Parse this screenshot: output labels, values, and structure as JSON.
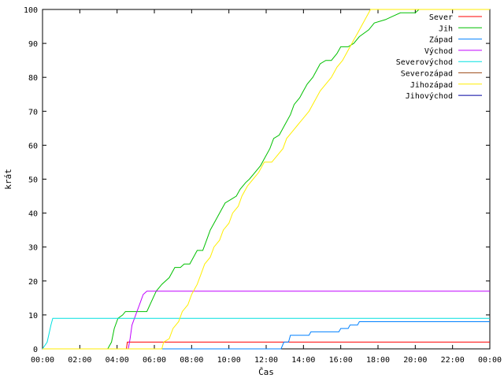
{
  "chart_data": {
    "type": "line",
    "xlabel": "Čas",
    "ylabel": "krát",
    "xlim": [
      0,
      24
    ],
    "ylim": [
      0,
      100
    ],
    "x_ticks": [
      "00:00",
      "02:00",
      "04:00",
      "06:00",
      "08:00",
      "10:00",
      "12:00",
      "14:00",
      "16:00",
      "18:00",
      "20:00",
      "22:00",
      "00:00"
    ],
    "y_ticks": [
      "0",
      "10",
      "20",
      "30",
      "40",
      "50",
      "60",
      "70",
      "80",
      "90",
      "100"
    ],
    "grid": false,
    "legend_position": "top-right",
    "series": [
      {
        "name": "Sever",
        "color": "#ff0000",
        "points": [
          [
            0,
            0
          ],
          [
            4.5,
            0
          ],
          [
            4.55,
            2
          ],
          [
            24,
            2
          ]
        ]
      },
      {
        "name": "Jih",
        "color": "#00c000",
        "points": [
          [
            0,
            0
          ],
          [
            3.5,
            0
          ],
          [
            3.7,
            2
          ],
          [
            3.85,
            6
          ],
          [
            4.05,
            9
          ],
          [
            4.3,
            10
          ],
          [
            4.45,
            11
          ],
          [
            5.6,
            11
          ],
          [
            5.85,
            14
          ],
          [
            6.1,
            17
          ],
          [
            6.4,
            19
          ],
          [
            6.8,
            21
          ],
          [
            7.1,
            24
          ],
          [
            7.4,
            24
          ],
          [
            7.6,
            25
          ],
          [
            7.9,
            25
          ],
          [
            8.1,
            27
          ],
          [
            8.3,
            29
          ],
          [
            8.6,
            29
          ],
          [
            8.8,
            32
          ],
          [
            9.0,
            35
          ],
          [
            9.3,
            38
          ],
          [
            9.6,
            41
          ],
          [
            9.8,
            43
          ],
          [
            10.1,
            44
          ],
          [
            10.4,
            45
          ],
          [
            10.6,
            47
          ],
          [
            10.9,
            49
          ],
          [
            11.1,
            50
          ],
          [
            11.4,
            52
          ],
          [
            11.7,
            54
          ],
          [
            11.9,
            56
          ],
          [
            12.2,
            59
          ],
          [
            12.4,
            62
          ],
          [
            12.7,
            63
          ],
          [
            13.0,
            66
          ],
          [
            13.3,
            69
          ],
          [
            13.5,
            72
          ],
          [
            13.8,
            74
          ],
          [
            14.0,
            76
          ],
          [
            14.2,
            78
          ],
          [
            14.5,
            80
          ],
          [
            14.7,
            82
          ],
          [
            14.9,
            84
          ],
          [
            15.2,
            85
          ],
          [
            15.5,
            85
          ],
          [
            15.8,
            87
          ],
          [
            16.0,
            89
          ],
          [
            16.4,
            89
          ],
          [
            16.7,
            90
          ],
          [
            17.0,
            92
          ],
          [
            17.5,
            94
          ],
          [
            17.8,
            96
          ],
          [
            18.4,
            97
          ],
          [
            18.8,
            98
          ],
          [
            19.2,
            99
          ],
          [
            20.0,
            99
          ],
          [
            20.2,
            100
          ],
          [
            24,
            100
          ]
        ]
      },
      {
        "name": "Západ",
        "color": "#0080ff",
        "points": [
          [
            0,
            0
          ],
          [
            12.8,
            0
          ],
          [
            12.95,
            2
          ],
          [
            13.2,
            2
          ],
          [
            13.3,
            4
          ],
          [
            14.3,
            4
          ],
          [
            14.4,
            5
          ],
          [
            15.9,
            5
          ],
          [
            16.0,
            6
          ],
          [
            16.4,
            6
          ],
          [
            16.5,
            7
          ],
          [
            16.9,
            7
          ],
          [
            17.0,
            8
          ],
          [
            24,
            8
          ]
        ]
      },
      {
        "name": "Východ",
        "color": "#c000ff",
        "points": [
          [
            0,
            0
          ],
          [
            4.6,
            0
          ],
          [
            4.7,
            3
          ],
          [
            4.8,
            7
          ],
          [
            5.0,
            10
          ],
          [
            5.2,
            13
          ],
          [
            5.4,
            16
          ],
          [
            5.6,
            17
          ],
          [
            24,
            17
          ]
        ]
      },
      {
        "name": "Severovýchod",
        "color": "#00e0e0",
        "points": [
          [
            0,
            0
          ],
          [
            0.25,
            2
          ],
          [
            0.45,
            7
          ],
          [
            0.55,
            9
          ],
          [
            24,
            9
          ]
        ]
      },
      {
        "name": "Severozápad",
        "color": "#a05020",
        "points": []
      },
      {
        "name": "Jihozápad",
        "color": "#ffee00",
        "points": [
          [
            0,
            0
          ],
          [
            6.4,
            0
          ],
          [
            6.5,
            2
          ],
          [
            6.8,
            3
          ],
          [
            7.0,
            6
          ],
          [
            7.3,
            8
          ],
          [
            7.5,
            11
          ],
          [
            7.8,
            13
          ],
          [
            8.0,
            16
          ],
          [
            8.3,
            19
          ],
          [
            8.5,
            22
          ],
          [
            8.7,
            25
          ],
          [
            9.0,
            27
          ],
          [
            9.2,
            30
          ],
          [
            9.5,
            32
          ],
          [
            9.7,
            35
          ],
          [
            10.0,
            37
          ],
          [
            10.2,
            40
          ],
          [
            10.5,
            42
          ],
          [
            10.7,
            45
          ],
          [
            11.0,
            48
          ],
          [
            11.3,
            50
          ],
          [
            11.6,
            52
          ],
          [
            11.9,
            55
          ],
          [
            12.3,
            55
          ],
          [
            12.6,
            57
          ],
          [
            12.9,
            59
          ],
          [
            13.1,
            62
          ],
          [
            13.4,
            64
          ],
          [
            13.7,
            66
          ],
          [
            14.0,
            68
          ],
          [
            14.3,
            70
          ],
          [
            14.6,
            73
          ],
          [
            14.9,
            76
          ],
          [
            15.2,
            78
          ],
          [
            15.5,
            80
          ],
          [
            15.8,
            83
          ],
          [
            16.1,
            85
          ],
          [
            16.4,
            88
          ],
          [
            16.7,
            91
          ],
          [
            16.9,
            93
          ],
          [
            17.2,
            96
          ],
          [
            17.5,
            99
          ],
          [
            17.6,
            100
          ],
          [
            24,
            100
          ]
        ]
      },
      {
        "name": "Jihovýchod",
        "color": "#0000a0",
        "points": []
      }
    ]
  }
}
